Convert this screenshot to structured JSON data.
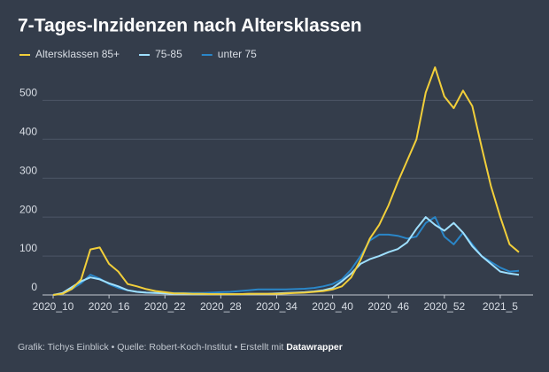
{
  "chart_data": {
    "type": "line",
    "title": "7-Tages-Inzidenzen nach Altersklassen",
    "source": "Grafik: Tichys Einblick • Quelle: Robert-Koch-Institut • Erstellt mit",
    "source_strong": "Datawrapper",
    "categories": [
      "2020_10",
      null,
      null,
      null,
      null,
      null,
      "2020_16",
      null,
      null,
      null,
      null,
      null,
      "2020_22",
      null,
      null,
      null,
      null,
      null,
      "2020_28",
      null,
      null,
      null,
      null,
      null,
      "2020_34",
      null,
      null,
      null,
      null,
      null,
      "2020_40",
      null,
      null,
      null,
      null,
      null,
      "2020_46",
      null,
      null,
      null,
      null,
      null,
      "2020_52",
      null,
      null,
      null,
      null,
      null,
      "2021_5",
      null,
      null
    ],
    "series": [
      {
        "name": "Altersklassen 85+",
        "color": "#f2cf3a",
        "values": [
          0,
          3,
          15,
          40,
          117,
          122,
          80,
          60,
          28,
          22,
          15,
          10,
          7,
          4,
          4,
          3,
          3,
          2,
          2,
          2,
          2,
          3,
          3,
          3,
          3,
          4,
          5,
          6,
          8,
          10,
          14,
          22,
          45,
          90,
          145,
          180,
          230,
          290,
          345,
          400,
          520,
          585,
          510,
          480,
          525,
          485,
          380,
          280,
          200,
          130,
          110
        ]
      },
      {
        "name": "75-85",
        "color": "#9fe0ff",
        "values": [
          0,
          5,
          20,
          35,
          45,
          40,
          30,
          22,
          12,
          8,
          6,
          5,
          4,
          3,
          3,
          2,
          2,
          2,
          2,
          2,
          2,
          3,
          3,
          3,
          4,
          5,
          6,
          7,
          9,
          12,
          18,
          35,
          55,
          80,
          92,
          100,
          110,
          118,
          135,
          170,
          200,
          180,
          165,
          185,
          160,
          125,
          100,
          80,
          60,
          55,
          52
        ]
      },
      {
        "name": "unter 75",
        "color": "#2a86c8",
        "values": [
          0,
          3,
          15,
          30,
          52,
          42,
          28,
          18,
          12,
          8,
          6,
          5,
          5,
          5,
          5,
          5,
          5,
          6,
          7,
          8,
          10,
          12,
          14,
          14,
          14,
          14,
          15,
          16,
          18,
          22,
          28,
          40,
          65,
          100,
          140,
          155,
          155,
          152,
          145,
          150,
          185,
          200,
          150,
          130,
          160,
          130,
          100,
          85,
          70,
          60,
          62
        ]
      }
    ],
    "ylim": [
      0,
      610
    ],
    "yticks": [
      0,
      100,
      200,
      300,
      400,
      500
    ],
    "grid": true
  }
}
